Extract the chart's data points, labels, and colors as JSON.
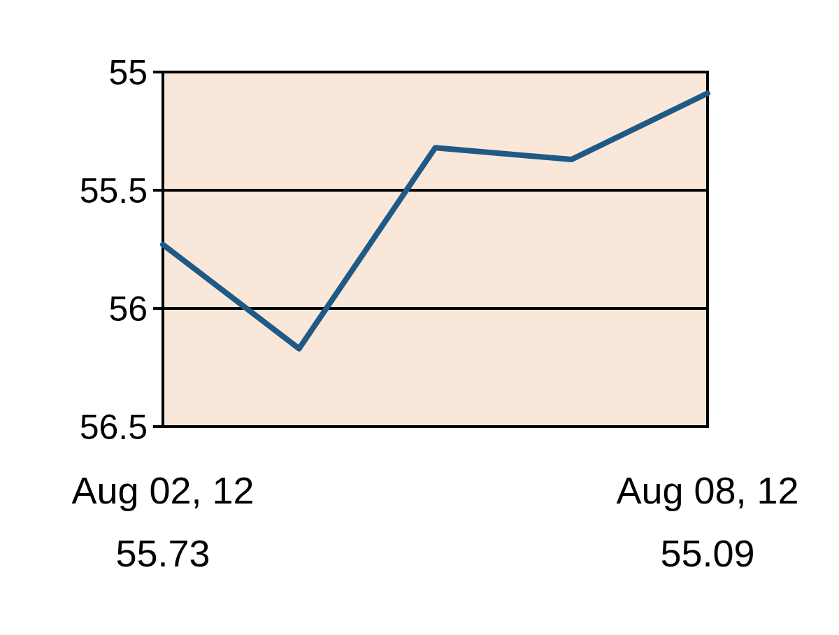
{
  "chart_data": {
    "type": "line",
    "categories": [
      "Aug 02, 12",
      null,
      null,
      null,
      "Aug 08, 12"
    ],
    "series": [
      {
        "color": "#1f5a87",
        "values": [
          55.73,
          56.17,
          55.32,
          55.37,
          55.09
        ]
      }
    ],
    "ylim": [
      56.5,
      55
    ],
    "yticks": [
      55,
      55.5,
      56,
      56.5
    ],
    "grid": "y",
    "marker": "none",
    "line_style": "solid",
    "annotations": [
      "55.73",
      "55.09"
    ]
  }
}
